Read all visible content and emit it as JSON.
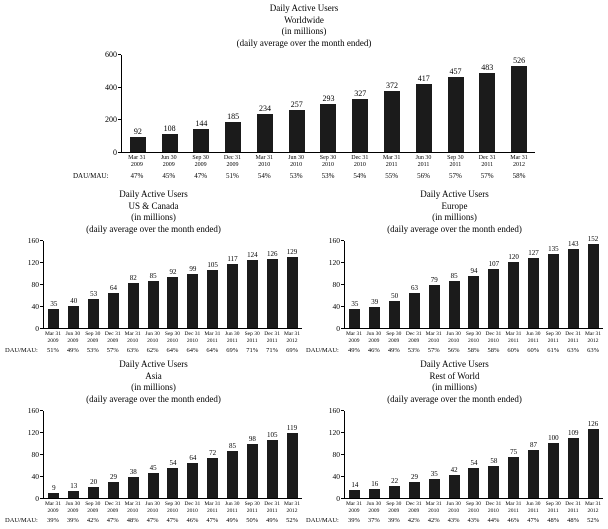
{
  "page": {
    "background": "#ffffff",
    "text_color": "#000000"
  },
  "chart_data": [
    {
      "type": "bar",
      "title": "Daily Active Users",
      "region": "Worldwide",
      "unit_label": "(in millions)",
      "subtitle": "(daily average over the month ended)",
      "bar_color": "#1b1b1b",
      "ylim": [
        0,
        600
      ],
      "yticks": [
        0,
        200,
        400,
        600
      ],
      "grid": false,
      "categories": [
        [
          "Mar 31",
          "2009"
        ],
        [
          "Jun 30",
          "2009"
        ],
        [
          "Sep 30",
          "2009"
        ],
        [
          "Dec 31",
          "2009"
        ],
        [
          "Mar 31",
          "2010"
        ],
        [
          "Jun 30",
          "2010"
        ],
        [
          "Sep 30",
          "2010"
        ],
        [
          "Dec 31",
          "2010"
        ],
        [
          "Mar 31",
          "2011"
        ],
        [
          "Jun 30",
          "2011"
        ],
        [
          "Sep 30",
          "2011"
        ],
        [
          "Dec 31",
          "2011"
        ],
        [
          "Mar 31",
          "2012"
        ]
      ],
      "values": [
        92,
        108,
        144,
        185,
        234,
        257,
        293,
        327,
        372,
        417,
        457,
        483,
        526
      ],
      "ratio_label": "DAU/MAU:",
      "ratios": [
        "47%",
        "45%",
        "47%",
        "51%",
        "54%",
        "53%",
        "53%",
        "54%",
        "55%",
        "56%",
        "57%",
        "57%",
        "58%"
      ]
    },
    {
      "type": "bar",
      "title": "Daily Active Users",
      "region": "US & Canada",
      "unit_label": "(in millions)",
      "subtitle": "(daily average over the month ended)",
      "bar_color": "#1b1b1b",
      "ylim": [
        0,
        160
      ],
      "yticks": [
        0,
        40,
        80,
        120,
        160
      ],
      "grid": false,
      "categories": [
        [
          "Mar 31",
          "2009"
        ],
        [
          "Jun 30",
          "2009"
        ],
        [
          "Sep 30",
          "2009"
        ],
        [
          "Dec 31",
          "2009"
        ],
        [
          "Mar 31",
          "2010"
        ],
        [
          "Jun 30",
          "2010"
        ],
        [
          "Sep 30",
          "2010"
        ],
        [
          "Dec 31",
          "2010"
        ],
        [
          "Mar 31",
          "2011"
        ],
        [
          "Jun 30",
          "2011"
        ],
        [
          "Sep 30",
          "2011"
        ],
        [
          "Dec 31",
          "2011"
        ],
        [
          "Mar 31",
          "2012"
        ]
      ],
      "values": [
        35,
        40,
        53,
        64,
        82,
        85,
        92,
        99,
        105,
        117,
        124,
        126,
        129
      ],
      "ratio_label": "DAU/MAU:",
      "ratios": [
        "51%",
        "49%",
        "53%",
        "57%",
        "63%",
        "62%",
        "64%",
        "64%",
        "64%",
        "69%",
        "71%",
        "71%",
        "69%"
      ]
    },
    {
      "type": "bar",
      "title": "Daily Active Users",
      "region": "Europe",
      "unit_label": "(in millions)",
      "subtitle": "(daily average over the month ended)",
      "bar_color": "#1b1b1b",
      "ylim": [
        0,
        160
      ],
      "yticks": [
        0,
        40,
        80,
        120,
        160
      ],
      "grid": false,
      "categories": [
        [
          "Mar 31",
          "2009"
        ],
        [
          "Jun 30",
          "2009"
        ],
        [
          "Sep 30",
          "2009"
        ],
        [
          "Dec 31",
          "2009"
        ],
        [
          "Mar 31",
          "2010"
        ],
        [
          "Jun 30",
          "2010"
        ],
        [
          "Sep 30",
          "2010"
        ],
        [
          "Dec 31",
          "2010"
        ],
        [
          "Mar 31",
          "2011"
        ],
        [
          "Jun 30",
          "2011"
        ],
        [
          "Sep 30",
          "2011"
        ],
        [
          "Dec 31",
          "2011"
        ],
        [
          "Mar 31",
          "2012"
        ]
      ],
      "values": [
        35,
        39,
        50,
        63,
        79,
        85,
        94,
        107,
        120,
        127,
        135,
        143,
        152
      ],
      "ratio_label": "DAU/MAU:",
      "ratios": [
        "49%",
        "46%",
        "49%",
        "53%",
        "57%",
        "56%",
        "58%",
        "58%",
        "60%",
        "60%",
        "61%",
        "63%",
        "63%"
      ]
    },
    {
      "type": "bar",
      "title": "Daily Active Users",
      "region": "Asia",
      "unit_label": "(in millions)",
      "subtitle": "(daily average over the month ended)",
      "bar_color": "#1b1b1b",
      "ylim": [
        0,
        160
      ],
      "yticks": [
        0,
        40,
        80,
        120,
        160
      ],
      "grid": false,
      "categories": [
        [
          "Mar 31",
          "2009"
        ],
        [
          "Jun 30",
          "2009"
        ],
        [
          "Sep 30",
          "2009"
        ],
        [
          "Dec 31",
          "2009"
        ],
        [
          "Mar 31",
          "2010"
        ],
        [
          "Jun 30",
          "2010"
        ],
        [
          "Sep 30",
          "2010"
        ],
        [
          "Dec 31",
          "2010"
        ],
        [
          "Mar 31",
          "2011"
        ],
        [
          "Jun 30",
          "2011"
        ],
        [
          "Sep 30",
          "2011"
        ],
        [
          "Dec 31",
          "2011"
        ],
        [
          "Mar 31",
          "2012"
        ]
      ],
      "values": [
        9,
        13,
        20,
        29,
        38,
        45,
        54,
        64,
        72,
        85,
        98,
        105,
        119
      ],
      "ratio_label": "DAU/MAU:",
      "ratios": [
        "39%",
        "39%",
        "42%",
        "47%",
        "48%",
        "47%",
        "47%",
        "46%",
        "47%",
        "49%",
        "50%",
        "49%",
        "52%"
      ]
    },
    {
      "type": "bar",
      "title": "Daily Active Users",
      "region": "Rest of World",
      "unit_label": "(in millions)",
      "subtitle": "(daily average over the month ended)",
      "bar_color": "#1b1b1b",
      "ylim": [
        0,
        160
      ],
      "yticks": [
        0,
        40,
        80,
        120,
        160
      ],
      "grid": false,
      "categories": [
        [
          "Mar 31",
          "2009"
        ],
        [
          "Jun 30",
          "2009"
        ],
        [
          "Sep 30",
          "2009"
        ],
        [
          "Dec 31",
          "2009"
        ],
        [
          "Mar 31",
          "2010"
        ],
        [
          "Jun 30",
          "2010"
        ],
        [
          "Sep 30",
          "2010"
        ],
        [
          "Dec 31",
          "2010"
        ],
        [
          "Mar 31",
          "2011"
        ],
        [
          "Jun 30",
          "2011"
        ],
        [
          "Sep 30",
          "2011"
        ],
        [
          "Dec 31",
          "2011"
        ],
        [
          "Mar 31",
          "2012"
        ]
      ],
      "values": [
        14,
        16,
        22,
        29,
        35,
        42,
        54,
        58,
        75,
        87,
        100,
        109,
        126
      ],
      "ratio_label": "DAU/MAU:",
      "ratios": [
        "39%",
        "37%",
        "39%",
        "42%",
        "42%",
        "43%",
        "43%",
        "44%",
        "46%",
        "47%",
        "48%",
        "48%",
        "52%"
      ]
    }
  ]
}
